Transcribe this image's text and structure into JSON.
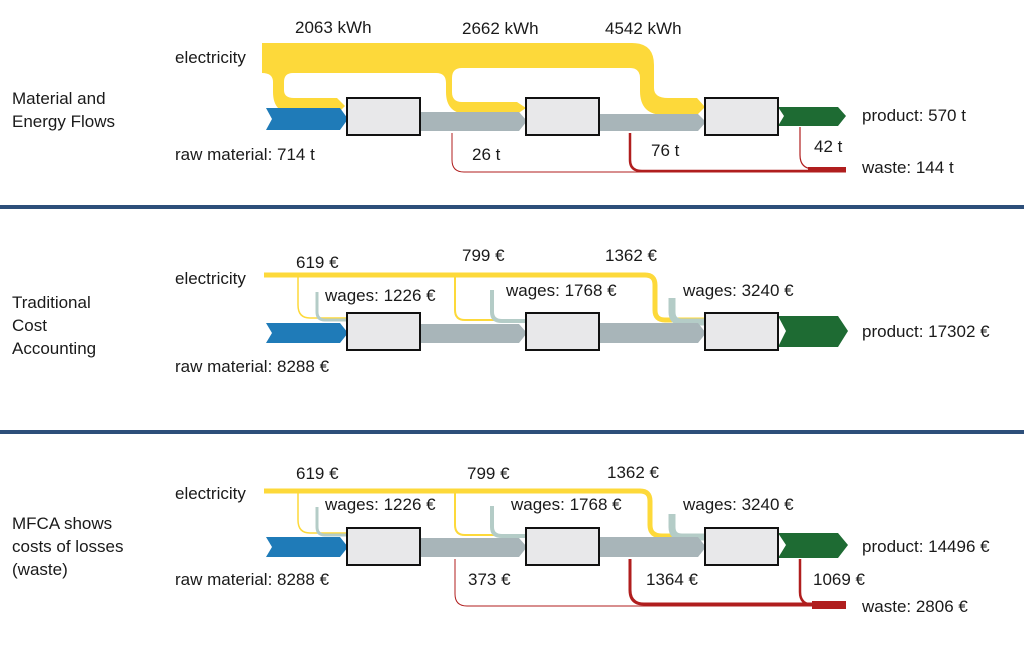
{
  "colors": {
    "energy": "#fdd93a",
    "raw_material": "#1f7bb8",
    "intermediate": "#a8b5b9",
    "product": "#1e6b33",
    "waste": "#b01e1e",
    "wages": "#b4ccc7",
    "divider": "#2d4f7a",
    "process_fill": "#e8e8ea",
    "process_stroke": "#111111"
  },
  "sections": [
    {
      "title": "Material and\nEnergy Flows",
      "energy_source": "electricity",
      "energy_values": [
        "2063 kWh",
        "2662 kWh",
        "4542 kWh"
      ],
      "input": "raw material: 714 t",
      "output": "product: 570 t",
      "losses": [
        "26 t",
        "76 t",
        "42 t"
      ],
      "waste": "waste: 144 t"
    },
    {
      "title": "Traditional\nCost\nAccounting",
      "energy_source": "electricity",
      "energy_values": [
        "619 €",
        "799 €",
        "1362 €"
      ],
      "wages": [
        "wages: 1226 €",
        "wages: 1768 €",
        "wages: 3240 €"
      ],
      "input": "raw material: 8288 €",
      "output": "product: 17302 €"
    },
    {
      "title": "MFCA shows\ncosts of losses\n(waste)",
      "energy_source": "electricity",
      "energy_values": [
        "619 €",
        "799 €",
        "1362 €"
      ],
      "wages": [
        "wages: 1226 €",
        "wages: 1768 €",
        "wages: 3240 €"
      ],
      "input": "raw material: 8288 €",
      "output": "product: 14496 €",
      "losses": [
        "373 €",
        "1364 €",
        "1069 €"
      ],
      "waste": "waste: 2806 €"
    }
  ]
}
